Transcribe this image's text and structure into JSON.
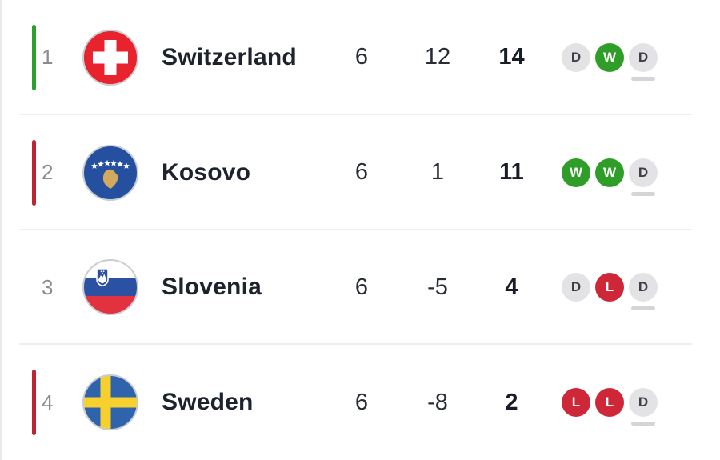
{
  "standings": {
    "rows": [
      {
        "position": "1",
        "team": "Switzerland",
        "flag": "switzerland",
        "accent": "green",
        "played": "6",
        "goal_difference": "12",
        "points": "14",
        "form": [
          {
            "result": "D",
            "outcome": "draw",
            "latest": false
          },
          {
            "result": "W",
            "outcome": "win",
            "latest": false
          },
          {
            "result": "D",
            "outcome": "draw",
            "latest": true
          }
        ]
      },
      {
        "position": "2",
        "team": "Kosovo",
        "flag": "kosovo",
        "accent": "red",
        "played": "6",
        "goal_difference": "1",
        "points": "11",
        "form": [
          {
            "result": "W",
            "outcome": "win",
            "latest": false
          },
          {
            "result": "W",
            "outcome": "win",
            "latest": false
          },
          {
            "result": "D",
            "outcome": "draw",
            "latest": true
          }
        ]
      },
      {
        "position": "3",
        "team": "Slovenia",
        "flag": "slovenia",
        "accent": "none",
        "played": "6",
        "goal_difference": "-5",
        "points": "4",
        "form": [
          {
            "result": "D",
            "outcome": "draw",
            "latest": false
          },
          {
            "result": "L",
            "outcome": "loss",
            "latest": false
          },
          {
            "result": "D",
            "outcome": "draw",
            "latest": true
          }
        ]
      },
      {
        "position": "4",
        "team": "Sweden",
        "flag": "sweden",
        "accent": "red",
        "played": "6",
        "goal_difference": "-8",
        "points": "2",
        "form": [
          {
            "result": "L",
            "outcome": "loss",
            "latest": false
          },
          {
            "result": "L",
            "outcome": "loss",
            "latest": false
          },
          {
            "result": "D",
            "outcome": "draw",
            "latest": true
          }
        ]
      }
    ]
  },
  "colors": {
    "qualification_accent_green": "#2ca02c",
    "playoff_accent_red": "#c02433",
    "win_badge_green": "#2f9e28",
    "loss_badge_red": "#ce2737",
    "draw_badge_gray": "#e3e3e5",
    "swiss_red": "#e8232d",
    "kosovo_blue": "#24509f",
    "kosovo_gold": "#d3a95f",
    "slovenia_blue": "#2b52a2",
    "slovenia_red": "#e23240",
    "sweden_blue": "#2f63ac",
    "sweden_yellow": "#f7d02e"
  }
}
